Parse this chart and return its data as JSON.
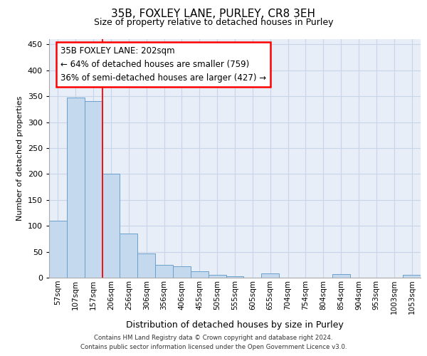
{
  "title": "35B, FOXLEY LANE, PURLEY, CR8 3EH",
  "subtitle": "Size of property relative to detached houses in Purley",
  "xlabel": "Distribution of detached houses by size in Purley",
  "ylabel": "Number of detached properties",
  "categories": [
    "57sqm",
    "107sqm",
    "157sqm",
    "206sqm",
    "256sqm",
    "306sqm",
    "356sqm",
    "406sqm",
    "455sqm",
    "505sqm",
    "555sqm",
    "605sqm",
    "655sqm",
    "704sqm",
    "754sqm",
    "804sqm",
    "854sqm",
    "904sqm",
    "953sqm",
    "1003sqm",
    "1053sqm"
  ],
  "values": [
    110,
    347,
    340,
    200,
    85,
    47,
    25,
    22,
    12,
    6,
    3,
    0,
    8,
    0,
    0,
    0,
    7,
    0,
    0,
    0,
    5
  ],
  "bar_color": "#c5d9ee",
  "bar_edge_color": "#6aa0cc",
  "red_line_x": 3,
  "annotation_text": "35B FOXLEY LANE: 202sqm\n← 64% of detached houses are smaller (759)\n36% of semi-detached houses are larger (427) →",
  "annotation_box_color": "white",
  "annotation_box_edge_color": "red",
  "ylim": [
    0,
    460
  ],
  "yticks": [
    0,
    50,
    100,
    150,
    200,
    250,
    300,
    350,
    400,
    450
  ],
  "grid_color": "#c8d4e8",
  "background_color": "#e8eef8",
  "footer_line1": "Contains HM Land Registry data © Crown copyright and database right 2024.",
  "footer_line2": "Contains public sector information licensed under the Open Government Licence v3.0."
}
